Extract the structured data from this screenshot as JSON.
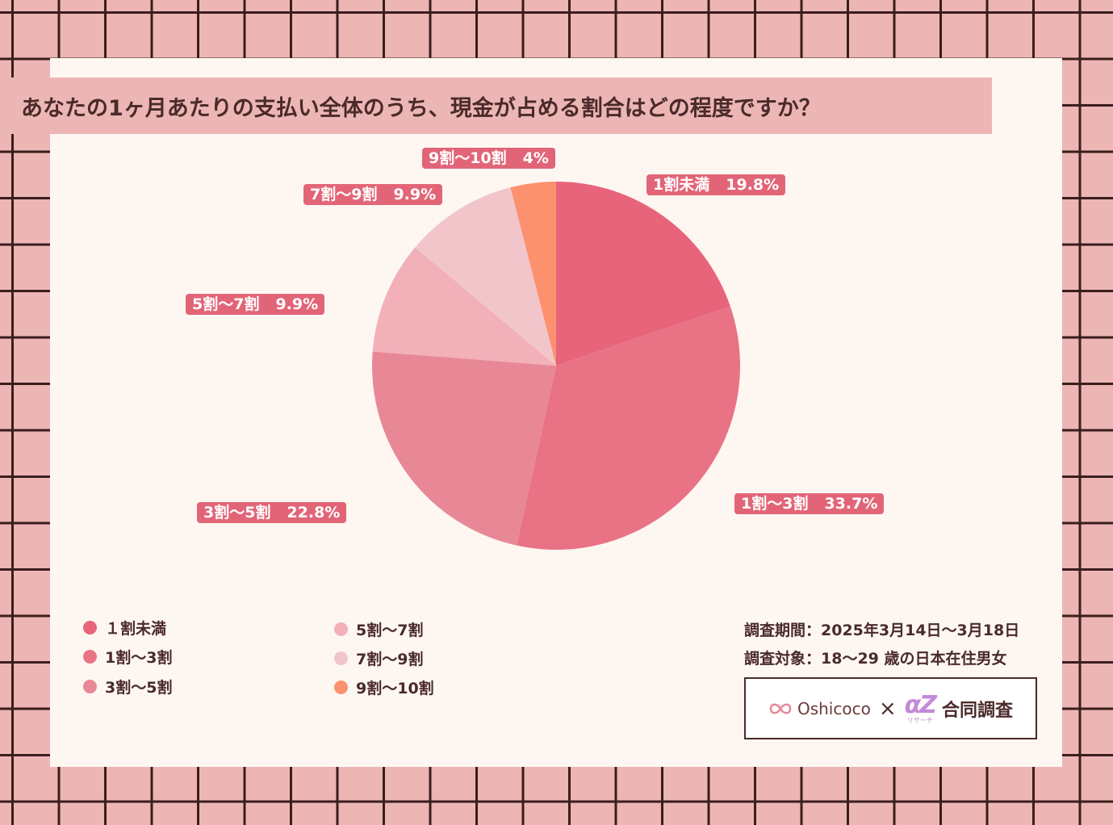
{
  "title": "あなたの1ヶ月あたりの支払い全体のうち、現金が占める割合はどの程度ですか？",
  "chart_data": {
    "type": "pie",
    "unit": "%",
    "slices": [
      {
        "label": "1割未満",
        "legend_label": "１割未満",
        "value": 19.8,
        "display": "19.8%",
        "color": "#e8647a"
      },
      {
        "label": "1割〜3割",
        "legend_label": "1割〜3割",
        "value": 33.7,
        "display": "33.7%",
        "color": "#e97385"
      },
      {
        "label": "3割〜5割",
        "legend_label": "3割〜5割",
        "value": 22.8,
        "display": "22.8%",
        "color": "#e88896"
      },
      {
        "label": "5割〜7割",
        "legend_label": "5割〜7割",
        "value": 9.9,
        "display": "9.9%",
        "color": "#f2b0b9"
      },
      {
        "label": "7割〜9割",
        "legend_label": "7割〜9割",
        "value": 9.9,
        "display": "9.9%",
        "color": "#f2c5cb"
      },
      {
        "label": "9割〜10割",
        "legend_label": "9割〜10割",
        "value": 4,
        "display": "4%",
        "color": "#fc9170"
      }
    ],
    "start": "12 o'clock",
    "direction": "clockwise"
  },
  "survey": {
    "period": "調査期間：2025年3月14日〜3月18日",
    "target": "調査対象：18〜29 歳の日本在住男女"
  },
  "footer": {
    "brand_left": "Oshicoco",
    "separator": "×",
    "brand_right": "αZ",
    "brand_right_sub": "リサーチ",
    "joint_label": "合同調査"
  }
}
